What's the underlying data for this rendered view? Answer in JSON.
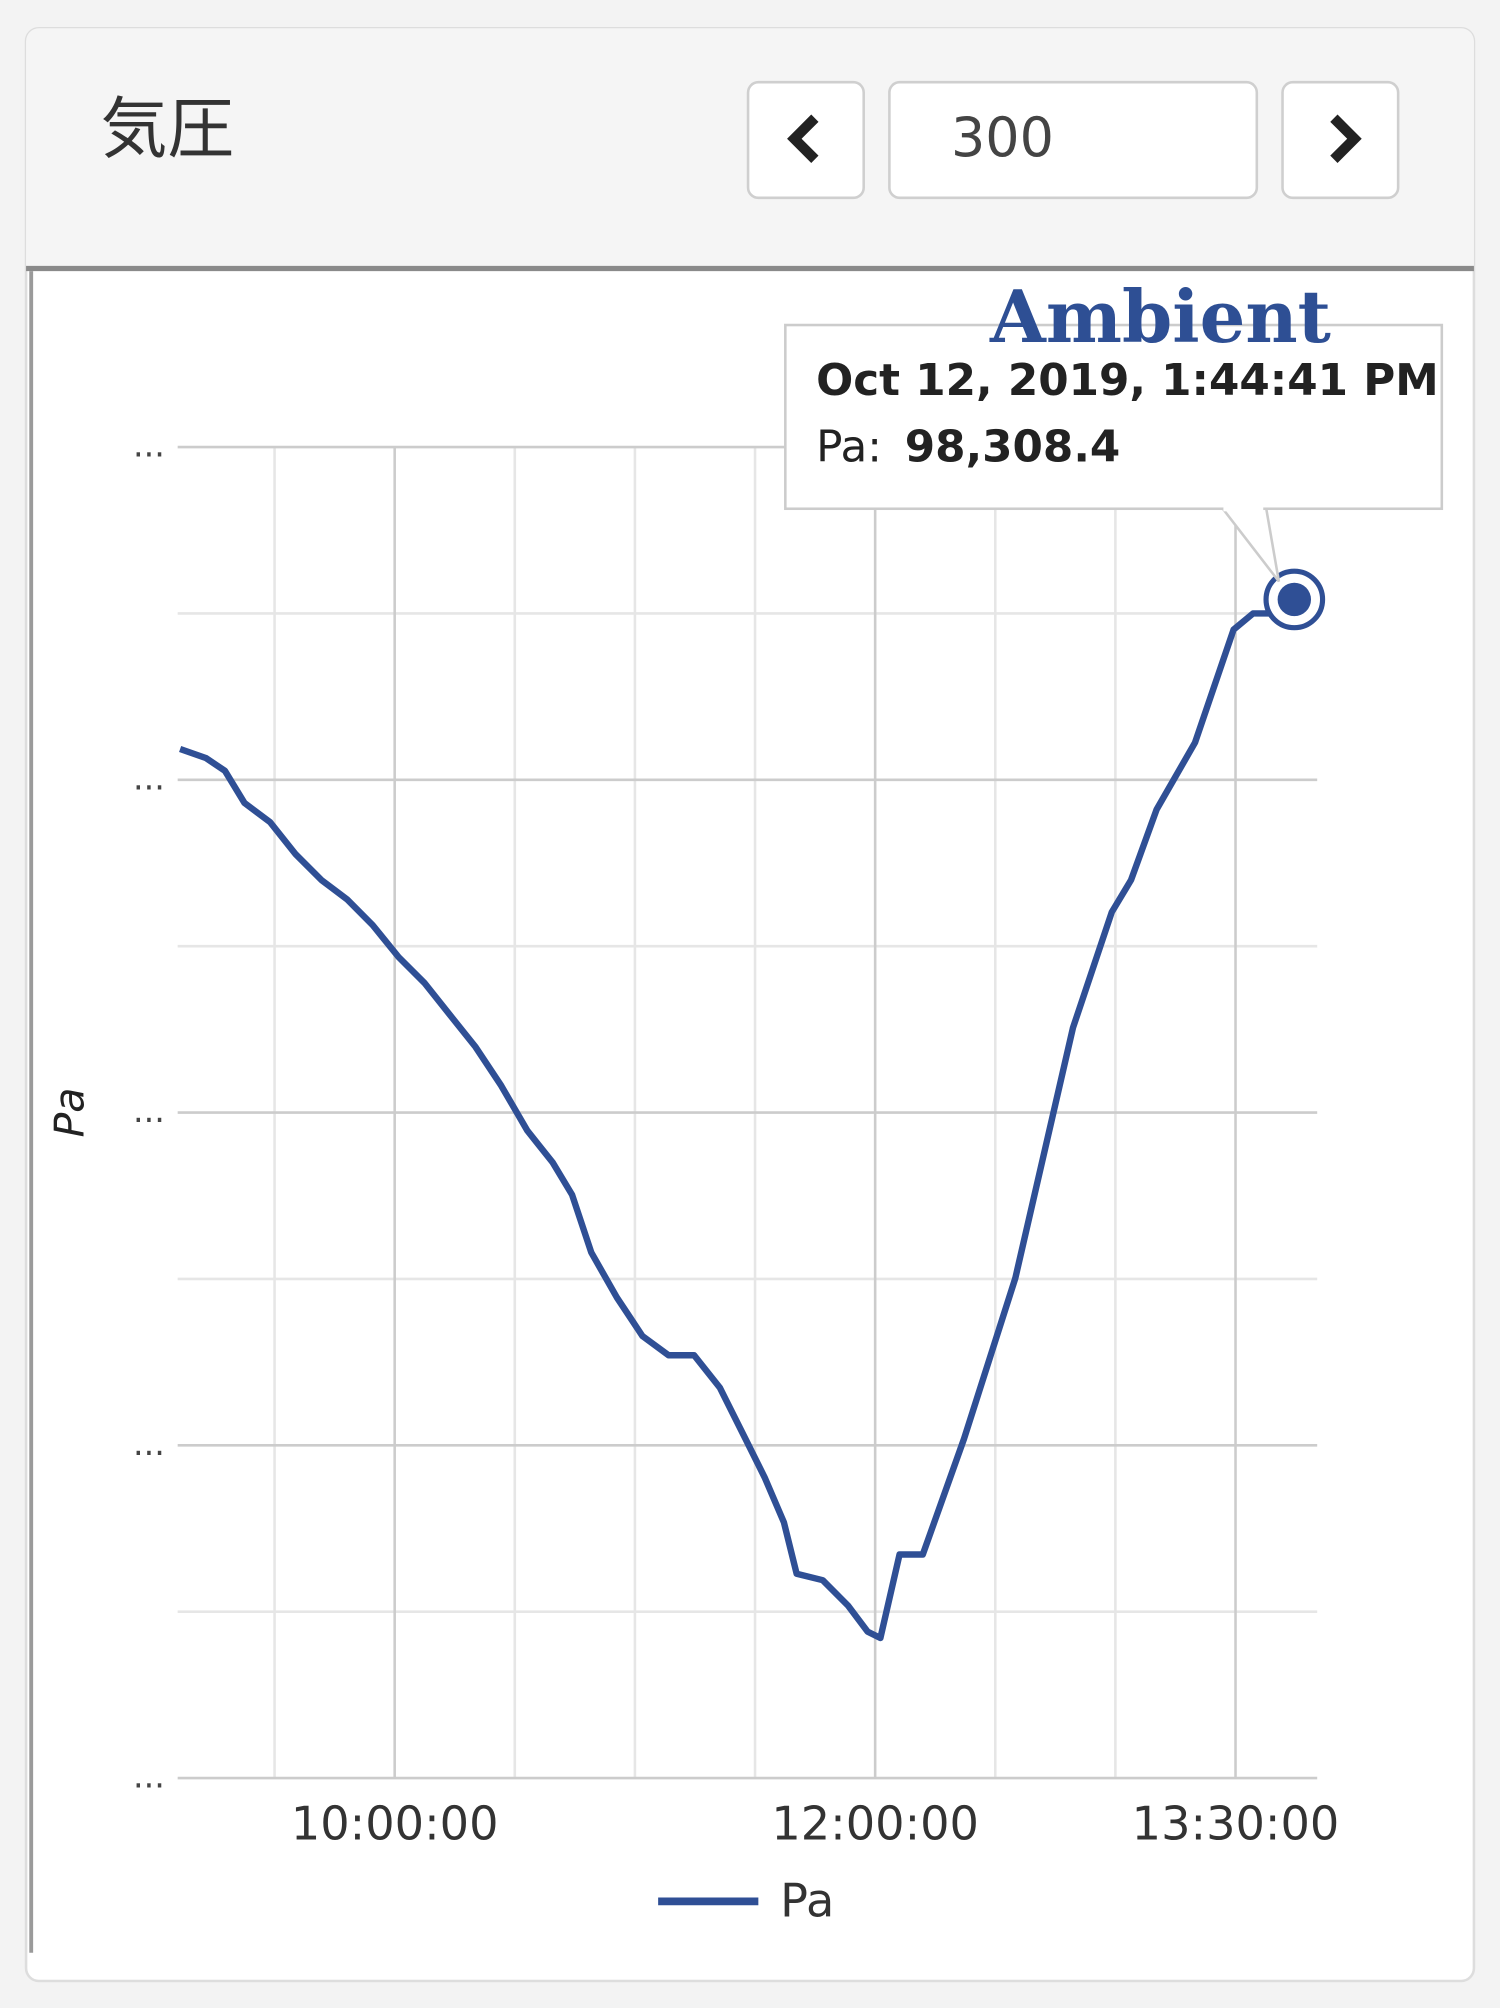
{
  "header": {
    "title": "気圧",
    "input": "300"
  },
  "chart_data": {
    "type": "line",
    "y_label": "Pa",
    "watermark": "Ambient",
    "x": [
      "09:06:24",
      "09:12:49",
      "09:17:36",
      "09:22:30",
      "09:28:54",
      "09:35:18",
      "09:41:42",
      "09:48:06",
      "09:54:30",
      "10:01:00",
      "10:07:24",
      "10:13:48",
      "10:20:12",
      "10:26:36",
      "10:33:06",
      "10:39:30",
      "10:44:18",
      "10:49:06",
      "10:55:30",
      "11:01:54",
      "11:08:24",
      "11:14:48",
      "11:21:12",
      "11:27:36",
      "11:32:24",
      "11:37:12",
      "11:40:24",
      "11:46:54",
      "11:53:18",
      "11:58:06",
      "12:01:18",
      "12:06:06",
      "12:11:54",
      "12:22:12",
      "12:35:00",
      "12:49:24",
      "12:59:06",
      "13:03:54",
      "13:10:18",
      "13:19:54",
      "13:29:30",
      "13:34:24",
      "13:39:12",
      "13:44:41"
    ],
    "series": [
      {
        "name": "Pa",
        "color": "#2f4f95",
        "values": [
          98218.5,
          98213.1,
          98205.4,
          98186.1,
          98174.5,
          98155.2,
          98139.8,
          98128.2,
          98112.7,
          98093.4,
          98078,
          98058.7,
          98039.4,
          98016.2,
          97989.2,
          97969.9,
          97950.6,
          97915.8,
          97888.8,
          97865.6,
          97854.1,
          97854.1,
          97834.7,
          97803.9,
          97780.7,
          97753.7,
          97722.8,
          97718.9,
          97703.5,
          97688,
          97684.2,
          97734.4,
          97734.4,
          97803.9,
          97900.4,
          98051,
          98120.5,
          98139.8,
          98182.2,
          98222.4,
          98290.3,
          98300,
          98300,
          98308.4
        ]
      }
    ],
    "xlim": [
      "09:05:48",
      "13:50:24"
    ],
    "xticks": [
      "10:00:00",
      "12:00:00",
      "13:30:00"
    ],
    "x_minor_grid": [
      "09:30:00",
      "10:30:00",
      "11:00:00",
      "11:30:00",
      "12:30:00",
      "13:00:00"
    ],
    "ylim": [
      97600,
      98400
    ],
    "yticks": [
      {
        "value": 97600,
        "label": "..."
      },
      {
        "value": 97800,
        "label": "..."
      },
      {
        "value": 98000,
        "label": "..."
      },
      {
        "value": 98200,
        "label": "..."
      },
      {
        "value": 98400,
        "label": "..."
      }
    ],
    "y_minor_grid": [
      97700,
      97900,
      98100,
      98300
    ],
    "grid": true,
    "tooltip": {
      "title": "Oct 12, 2019, 1:44:41 PM",
      "series": "Pa:",
      "value": "98,308.4"
    }
  }
}
